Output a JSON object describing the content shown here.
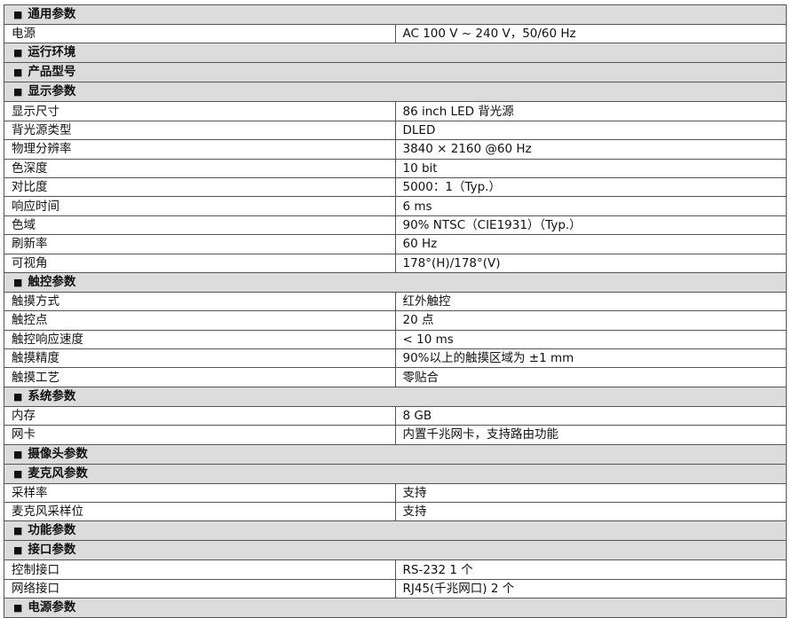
{
  "section_marker": "■",
  "rows": [
    {
      "section": "通用参数"
    },
    {
      "label": "电源",
      "value": "AC 100 V ~ 240 V，50/60 Hz"
    },
    {
      "section": "运行环境"
    },
    {
      "section": "产品型号"
    },
    {
      "section": "显示参数"
    },
    {
      "label": "显示尺寸",
      "value": "86 inch LED 背光源"
    },
    {
      "label": "背光源类型",
      "value": "DLED"
    },
    {
      "label": "物理分辨率",
      "value": "3840 × 2160 @60 Hz"
    },
    {
      "label": "色深度",
      "value": "10 bit"
    },
    {
      "label": "对比度",
      "value": "5000：1（Typ.）"
    },
    {
      "label": "响应时间",
      "value": "6 ms"
    },
    {
      "label": "色域",
      "value": "90% NTSC（CIE1931）（Typ.）"
    },
    {
      "label": "刷新率",
      "value": "60 Hz"
    },
    {
      "label": "可视角",
      "value": "178°(H)/178°(V)"
    },
    {
      "section": "触控参数"
    },
    {
      "label": "触摸方式",
      "value": "红外触控"
    },
    {
      "label": "触控点",
      "value": "20 点"
    },
    {
      "label": "触控响应速度",
      "value": " <  10 ms"
    },
    {
      "label": "触摸精度",
      "value": "90%以上的触摸区域为 ±1 mm"
    },
    {
      "label": "触摸工艺",
      "value": "零贴合"
    },
    {
      "section": "系统参数"
    },
    {
      "label": "内存",
      "value": "8 GB"
    },
    {
      "label": "网卡",
      "value": "内置千兆网卡，支持路由功能"
    },
    {
      "section": "摄像头参数"
    },
    {
      "section": "麦克风参数"
    },
    {
      "label": "采样率",
      "value": "支持"
    },
    {
      "label": "麦克风采样位",
      "value": "支持"
    },
    {
      "section": "功能参数"
    },
    {
      "section": "接口参数"
    },
    {
      "label": "控制接口",
      "value": "RS-232 1 个"
    },
    {
      "label": "网络接口",
      "value": "RJ45(千兆网口) 2 个"
    },
    {
      "section": "电源参数"
    }
  ]
}
